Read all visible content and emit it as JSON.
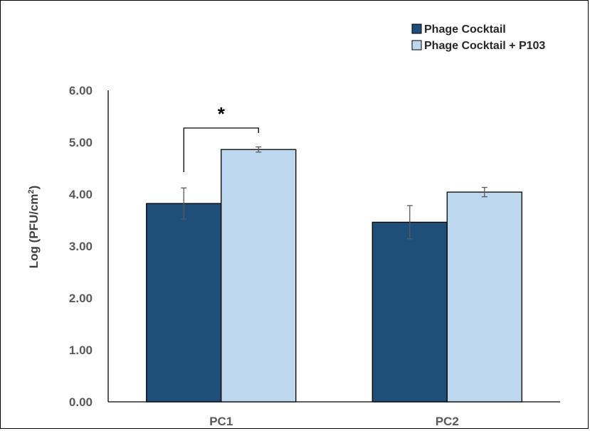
{
  "chart_data": {
    "type": "bar",
    "categories": [
      "PC1",
      "PC2"
    ],
    "series": [
      {
        "name": "Phage Cocktail",
        "values": [
          3.82,
          3.46
        ],
        "errors": [
          0.3,
          0.32
        ],
        "color": "#1f4e79"
      },
      {
        "name": "Phage Cocktail + P103",
        "values": [
          4.86,
          4.04
        ],
        "errors": [
          0.05,
          0.09
        ],
        "color": "#bdd7ee"
      }
    ],
    "ylabel_prefix": "Log (PFU/cm",
    "ylabel_sup": "2",
    "ylabel_suffix": ")",
    "ylim": [
      0,
      6
    ],
    "yticks": [
      "0.00",
      "1.00",
      "2.00",
      "3.00",
      "4.00",
      "5.00",
      "6.00"
    ],
    "legend_position": "top-right",
    "grid": false,
    "annotations": [
      {
        "text": "*",
        "category": "PC1",
        "between_series": [
          0,
          1
        ]
      }
    ]
  }
}
